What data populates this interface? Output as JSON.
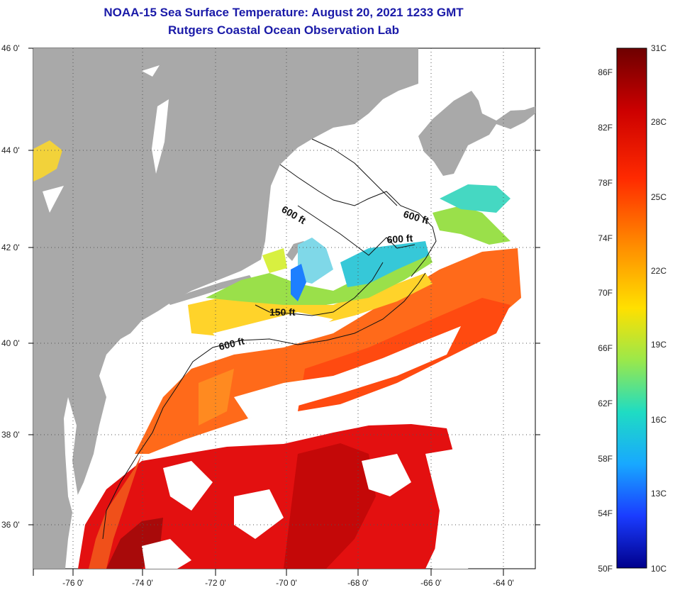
{
  "title": "NOAA-15 Sea Surface Temperature:  August 20, 2021 1233 GMT",
  "subtitle": "Rutgers Coastal Ocean Observation Lab",
  "lat_labels": [
    "46 0'",
    "44 0'",
    "42 0'",
    "40 0'",
    "38 0'",
    "36 0'"
  ],
  "lon_labels": [
    "-76 0'",
    "-74 0'",
    "-72 0'",
    "-70 0'",
    "-68 0'",
    "-66 0'",
    "-64 0'"
  ],
  "isobaths": [
    "600 ft",
    "600 ft",
    "600 ft",
    "150 ft",
    "600 ft"
  ],
  "colorbar": {
    "fahrenheit": [
      "86F",
      "82F",
      "78F",
      "74F",
      "70F",
      "66F",
      "62F",
      "58F",
      "54F",
      "50F"
    ],
    "celsius": [
      "31C",
      "28C",
      "25C",
      "22C",
      "19C",
      "16C",
      "13C",
      "10C"
    ],
    "colors": [
      "#7a0000",
      "#d40000",
      "#ff3a00",
      "#ff9900",
      "#ffe000",
      "#a8e84a",
      "#22dcc0",
      "#18a6ff",
      "#1a3cff",
      "#00008c"
    ]
  },
  "colors": {
    "land": "#a9a9a9",
    "cloud": "#ffffff",
    "title": "#1a1aa8"
  }
}
